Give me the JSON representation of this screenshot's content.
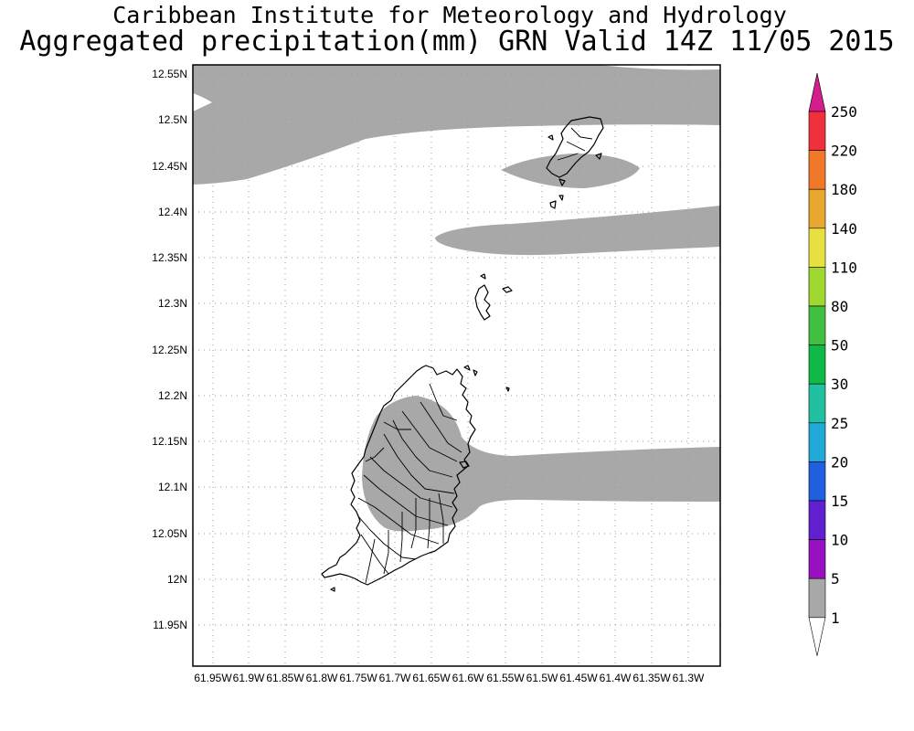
{
  "header": {
    "title_line1": "Caribbean Institute for Meteorology and Hydrology",
    "title_line2": "Aggregated precipitation(mm) GRN Valid 14Z 11/05 2015"
  },
  "axes": {
    "y_labels": [
      "12.55N",
      "12.5N",
      "12.45N",
      "12.4N",
      "12.35N",
      "12.3N",
      "12.25N",
      "12.2N",
      "12.15N",
      "12.1N",
      "12.05N",
      "12N",
      "11.95N"
    ],
    "x_labels": [
      "61.95W",
      "61.9W",
      "61.85W",
      "61.8W",
      "61.75W",
      "61.7W",
      "61.65W",
      "61.6W",
      "61.55W",
      "61.5W",
      "61.45W",
      "61.4W",
      "61.35W",
      "61.3W"
    ]
  },
  "legend": {
    "labels": [
      "250",
      "220",
      "180",
      "140",
      "110",
      "80",
      "50",
      "30",
      "25",
      "20",
      "15",
      "10",
      "5",
      "1"
    ],
    "colors": [
      "#d41e8c",
      "#f0303c",
      "#f07828",
      "#e8a830",
      "#e8e040",
      "#a0d830",
      "#40c040",
      "#10b848",
      "#20c0a0",
      "#20a8d8",
      "#2060e0",
      "#6020d0",
      "#9810c0",
      "#a8a8a8",
      "#ffffff"
    ]
  },
  "map": {
    "coastline_color": "#000000",
    "rain_color": "#a8a8a8"
  }
}
